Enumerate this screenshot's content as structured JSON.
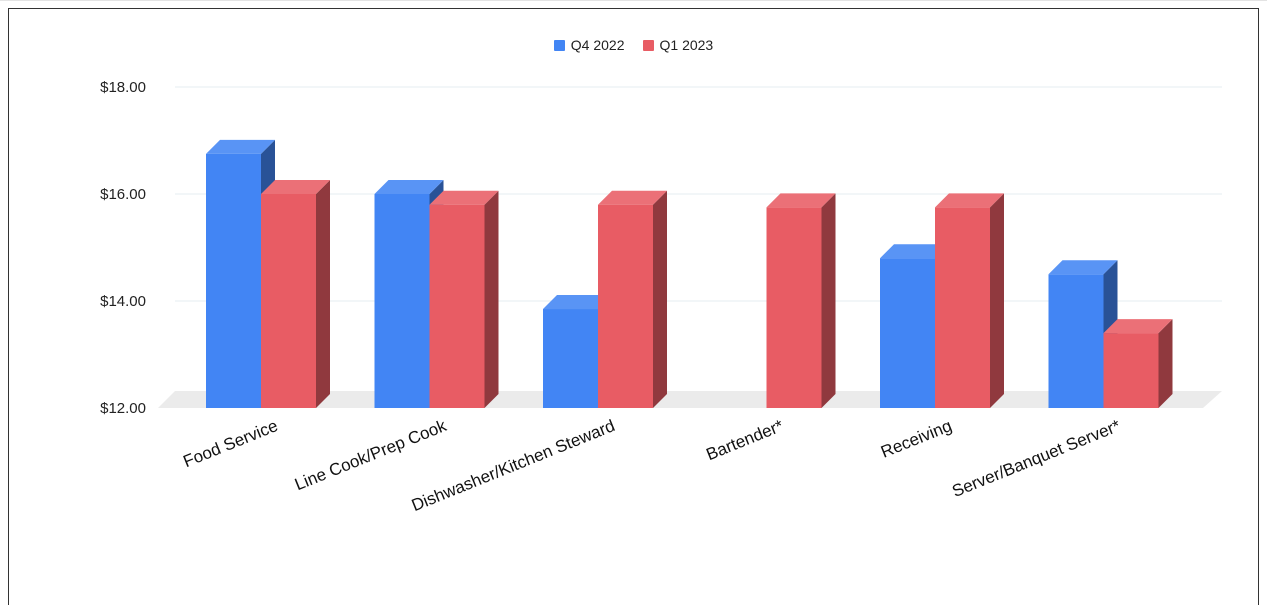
{
  "chart_data": {
    "type": "bar",
    "title": "",
    "xlabel": "",
    "ylabel": "",
    "categories": [
      "Food Service",
      "Line Cook/Prep Cook",
      "Dishwasher/Kitchen Steward",
      "Bartender*",
      "Receiving",
      "Server/Banquet Server*"
    ],
    "series": [
      {
        "name": "Q4 2022",
        "color": "#4285f4",
        "values": [
          16.75,
          16.0,
          13.85,
          null,
          14.8,
          14.5
        ]
      },
      {
        "name": "Q1 2023",
        "color": "#e85c64",
        "values": [
          16.0,
          15.8,
          15.8,
          15.75,
          15.75,
          13.4
        ]
      }
    ],
    "yticks": [
      "$12.00",
      "$14.00",
      "$16.00",
      "$18.00"
    ],
    "ytick_values": [
      12,
      14,
      16,
      18
    ],
    "ylim": [
      12,
      18
    ],
    "grid": true,
    "legend_position": "top-center",
    "style": "3d-column"
  }
}
